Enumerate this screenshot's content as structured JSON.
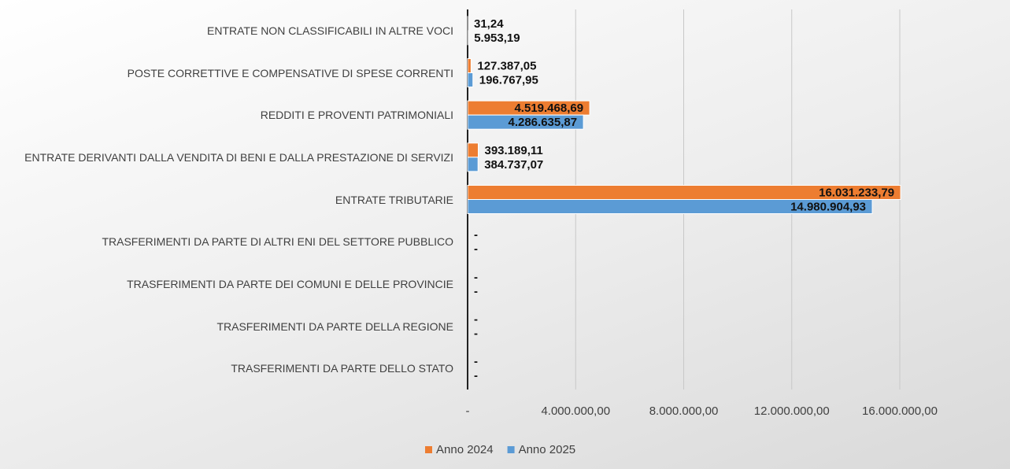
{
  "chart_data": {
    "type": "bar",
    "orientation": "horizontal",
    "categories": [
      "ENTRATE NON CLASSIFICABILI IN ALTRE VOCI",
      "POSTE CORRETTIVE E COMPENSATIVE DI SPESE CORRENTI",
      "REDDITI E PROVENTI PATRIMONIALI",
      "ENTRATE DERIVANTI DALLA VENDITA DI BENI E DALLA PRESTAZIONE DI SERVIZI",
      "ENTRATE TRIBUTARIE",
      "TRASFERIMENTI DA PARTE DI ALTRI ENI DEL SETTORE PUBBLICO",
      "TRASFERIMENTI DA PARTE DEI COMUNI E DELLE PROVINCIE",
      "TRASFERIMENTI DA PARTE DELLA REGIONE",
      "TRASFERIMENTI DA PARTE DELLO STATO"
    ],
    "series": [
      {
        "name": "Anno 2024",
        "color": "#ed7d31",
        "values": [
          31.24,
          127387.05,
          4519468.69,
          393189.11,
          16031233.79,
          0,
          0,
          0,
          0
        ],
        "value_labels": [
          "31,24",
          "127.387,05",
          "4.519.468,69",
          "393.189,11",
          "16.031.233,79",
          "-",
          "-",
          "-",
          "-"
        ]
      },
      {
        "name": "Anno 2025",
        "color": "#5b9bd5",
        "values": [
          5953.19,
          196767.95,
          4286635.87,
          384737.07,
          14980904.93,
          0,
          0,
          0,
          0
        ],
        "value_labels": [
          "5.953,19",
          "196.767,95",
          "4.286.635,87",
          "384.737,07",
          "14.980.904,93",
          "-",
          "-",
          "-",
          "-"
        ]
      }
    ],
    "xlim": [
      0,
      16000000
    ],
    "xticks": [
      {
        "value": 0,
        "label": "-"
      },
      {
        "value": 4000000,
        "label": "4.000.000,00"
      },
      {
        "value": 8000000,
        "label": "8.000.000,00"
      },
      {
        "value": 12000000,
        "label": "12.000.000,00"
      },
      {
        "value": 16000000,
        "label": "16.000.000,00"
      }
    ],
    "grid": true,
    "legend": "bottom"
  }
}
